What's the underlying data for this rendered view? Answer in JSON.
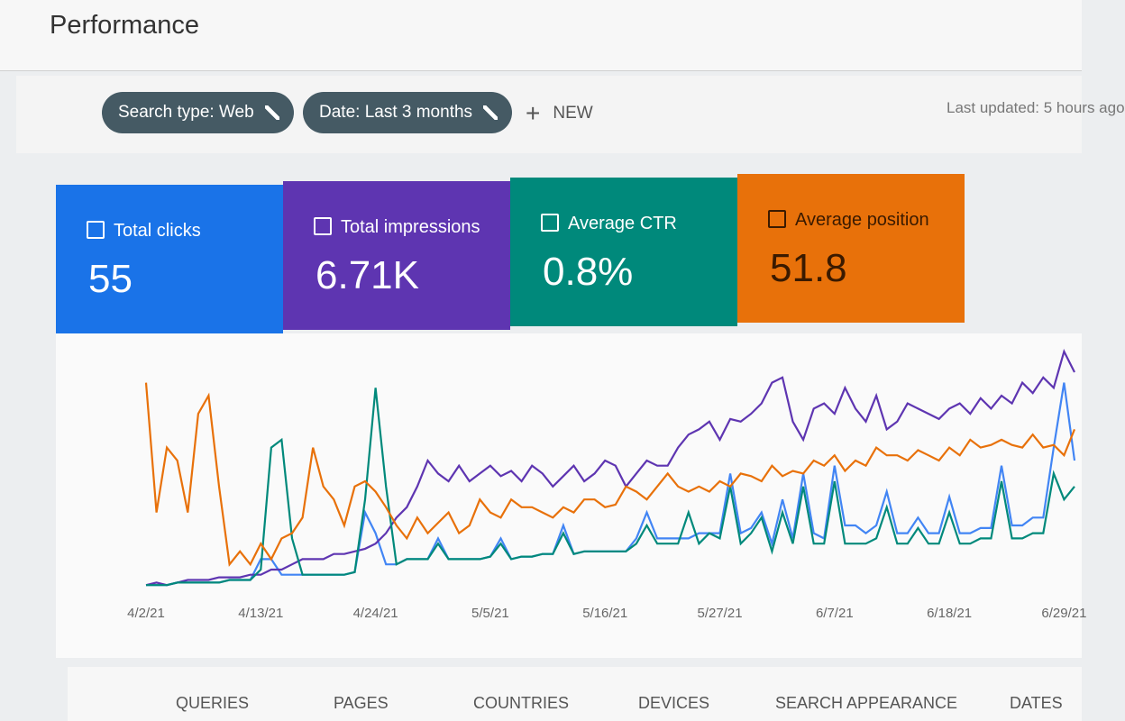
{
  "header": {
    "title": "Performance",
    "last_updated": "Last updated: 5 hours ago"
  },
  "filters": [
    "Search type: Web",
    "Date: Last 3 months"
  ],
  "new_button": "NEW",
  "metric_totals": [
    "55",
    "6.71K",
    "0.8%",
    "51.8"
  ],
  "chart_data": {
    "type": "line",
    "categories": [
      "4/2/21",
      null,
      null,
      null,
      null,
      null,
      null,
      null,
      null,
      null,
      null,
      "4/13/21",
      null,
      null,
      null,
      null,
      null,
      null,
      null,
      null,
      null,
      null,
      "4/24/21",
      null,
      null,
      null,
      null,
      null,
      null,
      null,
      null,
      null,
      null,
      "5/5/21",
      null,
      null,
      null,
      null,
      null,
      null,
      null,
      null,
      null,
      null,
      "5/16/21",
      null,
      null,
      null,
      null,
      null,
      null,
      null,
      null,
      null,
      null,
      "5/27/21",
      null,
      null,
      null,
      null,
      null,
      null,
      null,
      null,
      null,
      null,
      "6/7/21",
      null,
      null,
      null,
      null,
      null,
      null,
      null,
      null,
      null,
      null,
      "6/18/21",
      null,
      null,
      null,
      null,
      null,
      null,
      null,
      null,
      null,
      null,
      "6/29/21",
      null
    ],
    "series": [
      {
        "name": "Total clicks",
        "color": "#4285f4",
        "card_color": "#1a73e8",
        "values": [
          2,
          2,
          2,
          3,
          3,
          3,
          3,
          3,
          4,
          4,
          4,
          12,
          12,
          6,
          6,
          6,
          6,
          6,
          6,
          6,
          7,
          30,
          22,
          10,
          10,
          12,
          12,
          12,
          20,
          12,
          12,
          12,
          12,
          13,
          20,
          12,
          13,
          13,
          14,
          14,
          25,
          14,
          15,
          15,
          15,
          15,
          15,
          20,
          30,
          20,
          20,
          20,
          20,
          22,
          22,
          22,
          45,
          22,
          24,
          30,
          18,
          35,
          20,
          45,
          22,
          20,
          48,
          25,
          25,
          22,
          25,
          38,
          22,
          22,
          28,
          22,
          22,
          36,
          22,
          22,
          24,
          24,
          48,
          25,
          25,
          28,
          28,
          55,
          80,
          50
        ]
      },
      {
        "name": "Total impressions",
        "color": "#5e35b1",
        "card_color": "#5e35b1",
        "values": [
          2,
          3,
          2,
          3,
          4,
          4,
          4,
          5,
          5,
          5,
          6,
          6,
          8,
          8,
          10,
          12,
          12,
          12,
          14,
          14,
          15,
          16,
          18,
          22,
          28,
          32,
          40,
          50,
          45,
          42,
          48,
          42,
          45,
          48,
          44,
          46,
          42,
          48,
          45,
          40,
          44,
          48,
          42,
          45,
          50,
          48,
          40,
          45,
          50,
          48,
          48,
          55,
          60,
          62,
          65,
          58,
          66,
          65,
          68,
          72,
          80,
          82,
          65,
          58,
          70,
          72,
          68,
          78,
          70,
          65,
          75,
          62,
          65,
          72,
          70,
          68,
          66,
          70,
          72,
          68,
          74,
          70,
          75,
          72,
          80,
          76,
          82,
          78,
          92,
          84
        ]
      },
      {
        "name": "Average CTR",
        "color": "#00897b",
        "card_color": "#00897b",
        "values": [
          2,
          2,
          2,
          3,
          3,
          3,
          3,
          3,
          4,
          4,
          4,
          8,
          55,
          58,
          20,
          6,
          6,
          6,
          6,
          6,
          7,
          35,
          78,
          40,
          10,
          12,
          12,
          12,
          18,
          12,
          12,
          12,
          12,
          13,
          18,
          12,
          13,
          13,
          14,
          14,
          22,
          14,
          15,
          15,
          15,
          15,
          15,
          18,
          25,
          18,
          18,
          18,
          30,
          18,
          22,
          20,
          40,
          18,
          22,
          28,
          15,
          30,
          18,
          40,
          18,
          18,
          42,
          18,
          18,
          18,
          20,
          32,
          18,
          18,
          24,
          18,
          18,
          30,
          18,
          18,
          20,
          20,
          42,
          20,
          20,
          22,
          22,
          45,
          35,
          40
        ]
      },
      {
        "name": "Average position",
        "color": "#e8710a",
        "card_color": "#e8710a",
        "values": [
          80,
          30,
          55,
          50,
          30,
          68,
          75,
          40,
          10,
          15,
          10,
          18,
          12,
          20,
          22,
          28,
          55,
          40,
          35,
          25,
          40,
          42,
          38,
          32,
          25,
          20,
          28,
          22,
          26,
          30,
          22,
          25,
          35,
          30,
          28,
          35,
          32,
          32,
          30,
          28,
          32,
          30,
          35,
          35,
          32,
          33,
          40,
          38,
          35,
          40,
          45,
          40,
          38,
          40,
          38,
          42,
          40,
          45,
          44,
          42,
          48,
          44,
          46,
          45,
          50,
          48,
          52,
          46,
          50,
          48,
          55,
          52,
          52,
          50,
          54,
          52,
          50,
          55,
          52,
          58,
          55,
          56,
          58,
          56,
          55,
          60,
          55,
          56,
          52,
          62
        ]
      }
    ]
  },
  "tabs": [
    "QUERIES",
    "PAGES",
    "COUNTRIES",
    "DEVICES",
    "SEARCH APPEARANCE",
    "DATES"
  ]
}
